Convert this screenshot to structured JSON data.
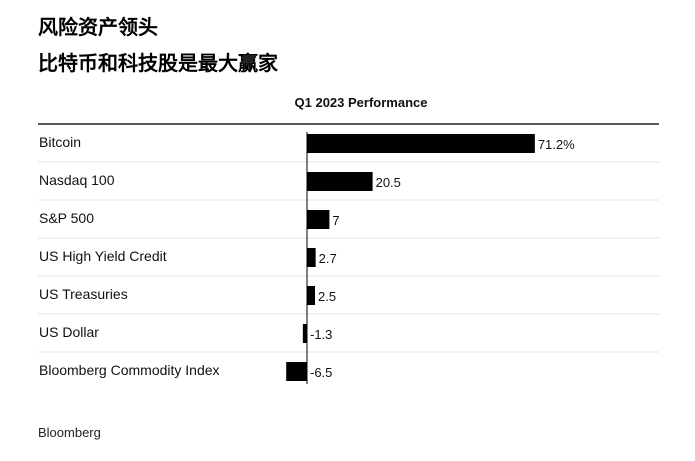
{
  "headline": {
    "line1": "风险资产领头",
    "line2": "比特币和科技股是最大赢家"
  },
  "chart_data": {
    "type": "bar",
    "orientation": "horizontal",
    "title": "Q1 2023 Performance",
    "categories": [
      "Bitcoin",
      "Nasdaq 100",
      "S&P 500",
      "US High Yield Credit",
      "US Treasuries",
      "US Dollar",
      "Bloomberg Commodity Index"
    ],
    "values": [
      71.2,
      20.5,
      7,
      2.7,
      2.5,
      -1.3,
      -6.5
    ],
    "value_labels": [
      "71.2%",
      "20.5",
      "7",
      "2.7",
      "2.5",
      "-1.3",
      "-6.5"
    ],
    "bar_color": "#000000",
    "grid": false
  },
  "source": "Bloomberg"
}
